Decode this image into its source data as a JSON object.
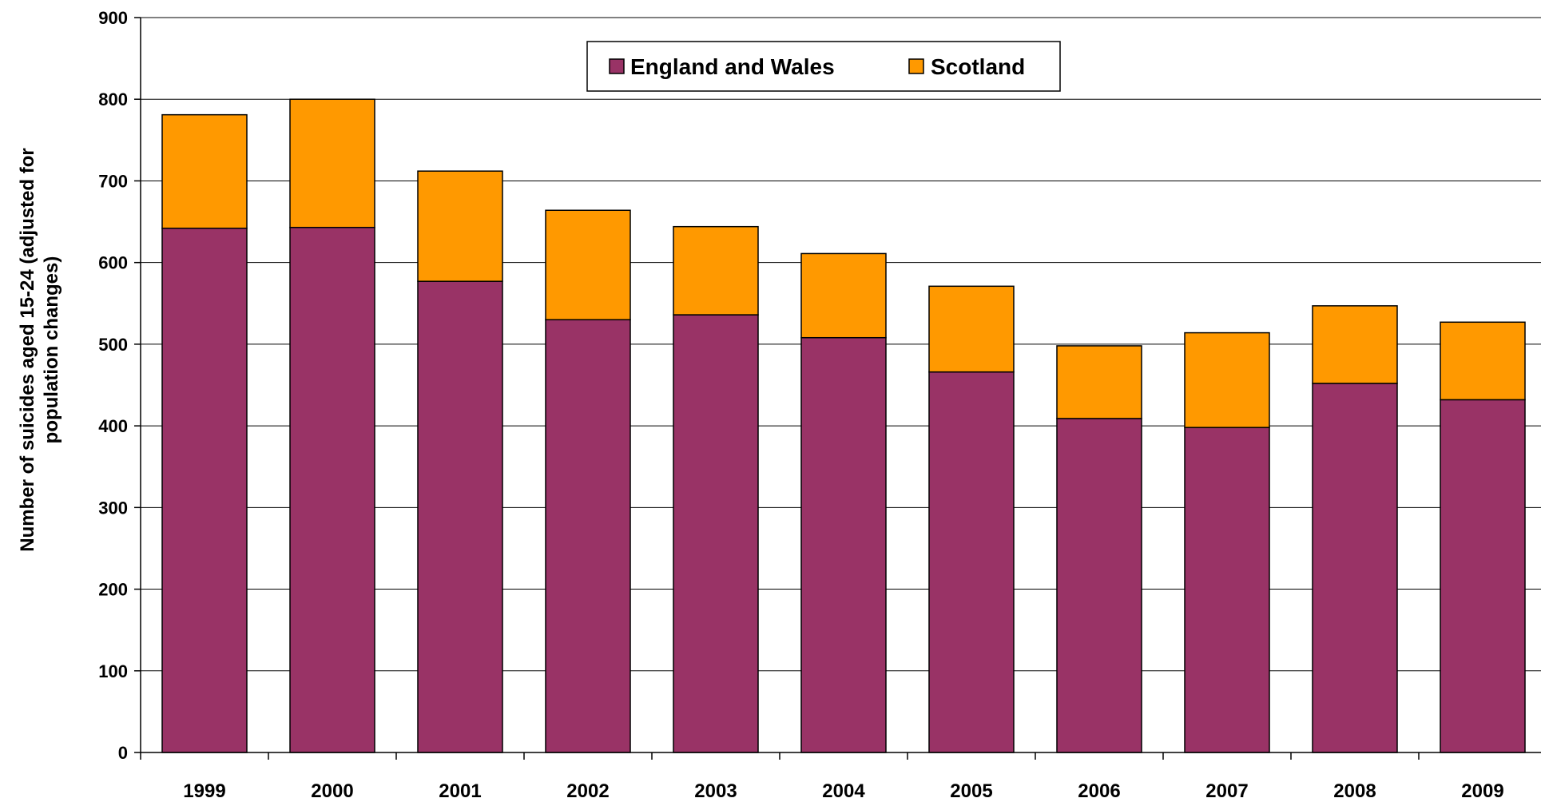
{
  "chart_data": {
    "type": "bar",
    "stacked": true,
    "categories": [
      "1999",
      "2000",
      "2001",
      "2002",
      "2003",
      "2004",
      "2005",
      "2006",
      "2007",
      "2008",
      "2009"
    ],
    "series": [
      {
        "name": "England and Wales",
        "color": "#993366",
        "values": [
          642,
          643,
          577,
          530,
          536,
          508,
          466,
          409,
          398,
          452,
          432
        ]
      },
      {
        "name": "Scotland",
        "color": "#FF9900",
        "values": [
          139,
          157,
          135,
          134,
          108,
          103,
          105,
          89,
          116,
          95,
          95
        ]
      }
    ],
    "ylabel": [
      "Number of suicides aged 15-24 (adjusted for",
      "population changes)"
    ],
    "ylim": [
      0,
      900
    ],
    "yticks": [
      "0",
      "100",
      "200",
      "300",
      "400",
      "500",
      "600",
      "700",
      "800",
      "900"
    ],
    "grid": true,
    "legend_position": "top-center"
  }
}
